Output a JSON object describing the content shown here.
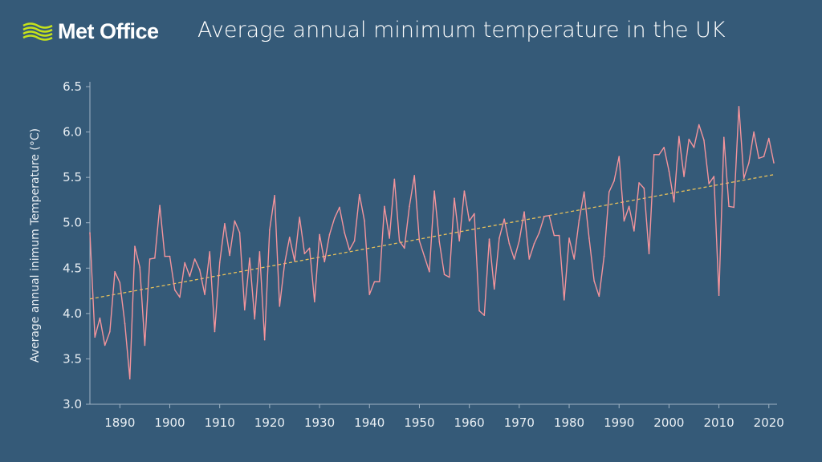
{
  "header": {
    "logo_text": "Met Office",
    "title": "Average annual minimum temperature in the UK"
  },
  "colors": {
    "background": "#355a78",
    "series": "#f4949c",
    "trend": "#e8c15a",
    "logo_waves": "#c5e21b"
  },
  "chart_data": {
    "type": "line",
    "title": "Average annual minimum temperature in the UK",
    "xlabel": "",
    "ylabel": "Average annual inimum Temperature (°C)",
    "xlim": [
      1884,
      2021
    ],
    "ylim": [
      3.0,
      6.5
    ],
    "xticks": [
      1890,
      1900,
      1910,
      1920,
      1930,
      1940,
      1950,
      1960,
      1970,
      1980,
      1990,
      2000,
      2010,
      2020
    ],
    "yticks": [
      "3.0",
      "3.5",
      "4.0",
      "4.5",
      "5.0",
      "5.5",
      "6.0",
      "6.5"
    ],
    "grid": false,
    "x_start": 1884,
    "series": [
      {
        "values": [
          4.89,
          3.74,
          3.95,
          3.65,
          3.8,
          4.46,
          4.34,
          3.89,
          3.28,
          4.74,
          4.51,
          3.65,
          4.6,
          4.61,
          5.19,
          4.63,
          4.63,
          4.26,
          4.18,
          4.56,
          4.41,
          4.6,
          4.48,
          4.21,
          4.68,
          3.8,
          4.56,
          4.99,
          4.64,
          5.02,
          4.89,
          4.04,
          4.61,
          3.94,
          4.68,
          3.71,
          4.92,
          5.3,
          4.08,
          4.55,
          4.84,
          4.58,
          5.06,
          4.66,
          4.72,
          4.13,
          4.87,
          4.57,
          4.87,
          5.05,
          5.17,
          4.89,
          4.7,
          4.8,
          5.31,
          5.02,
          4.21,
          4.35,
          4.35,
          5.18,
          4.83,
          5.48,
          4.8,
          4.72,
          5.18,
          5.52,
          4.8,
          4.63,
          4.46,
          5.35,
          4.79,
          4.43,
          4.4,
          5.27,
          4.8,
          5.35,
          5.02,
          5.1,
          4.03,
          3.98,
          4.82,
          4.27,
          4.83,
          5.04,
          4.77,
          4.6,
          4.8,
          5.12,
          4.6,
          4.77,
          4.89,
          5.07,
          5.08,
          4.86,
          4.86,
          4.15,
          4.83,
          4.6,
          5.03,
          5.34,
          4.83,
          4.36,
          4.19,
          4.63,
          5.34,
          5.46,
          5.73,
          5.02,
          5.18,
          4.91,
          5.44,
          5.38,
          4.66,
          5.75,
          5.75,
          5.83,
          5.57,
          5.23,
          5.95,
          5.51,
          5.92,
          5.83,
          6.08,
          5.91,
          5.43,
          5.51,
          4.2,
          5.94,
          5.18,
          5.17,
          6.28,
          5.49,
          5.66,
          6.0,
          5.71,
          5.73,
          5.93,
          5.66
        ]
      }
    ],
    "trend": {
      "style": "dashed",
      "start": [
        1884,
        4.16
      ],
      "end": [
        2021,
        5.53
      ]
    }
  }
}
